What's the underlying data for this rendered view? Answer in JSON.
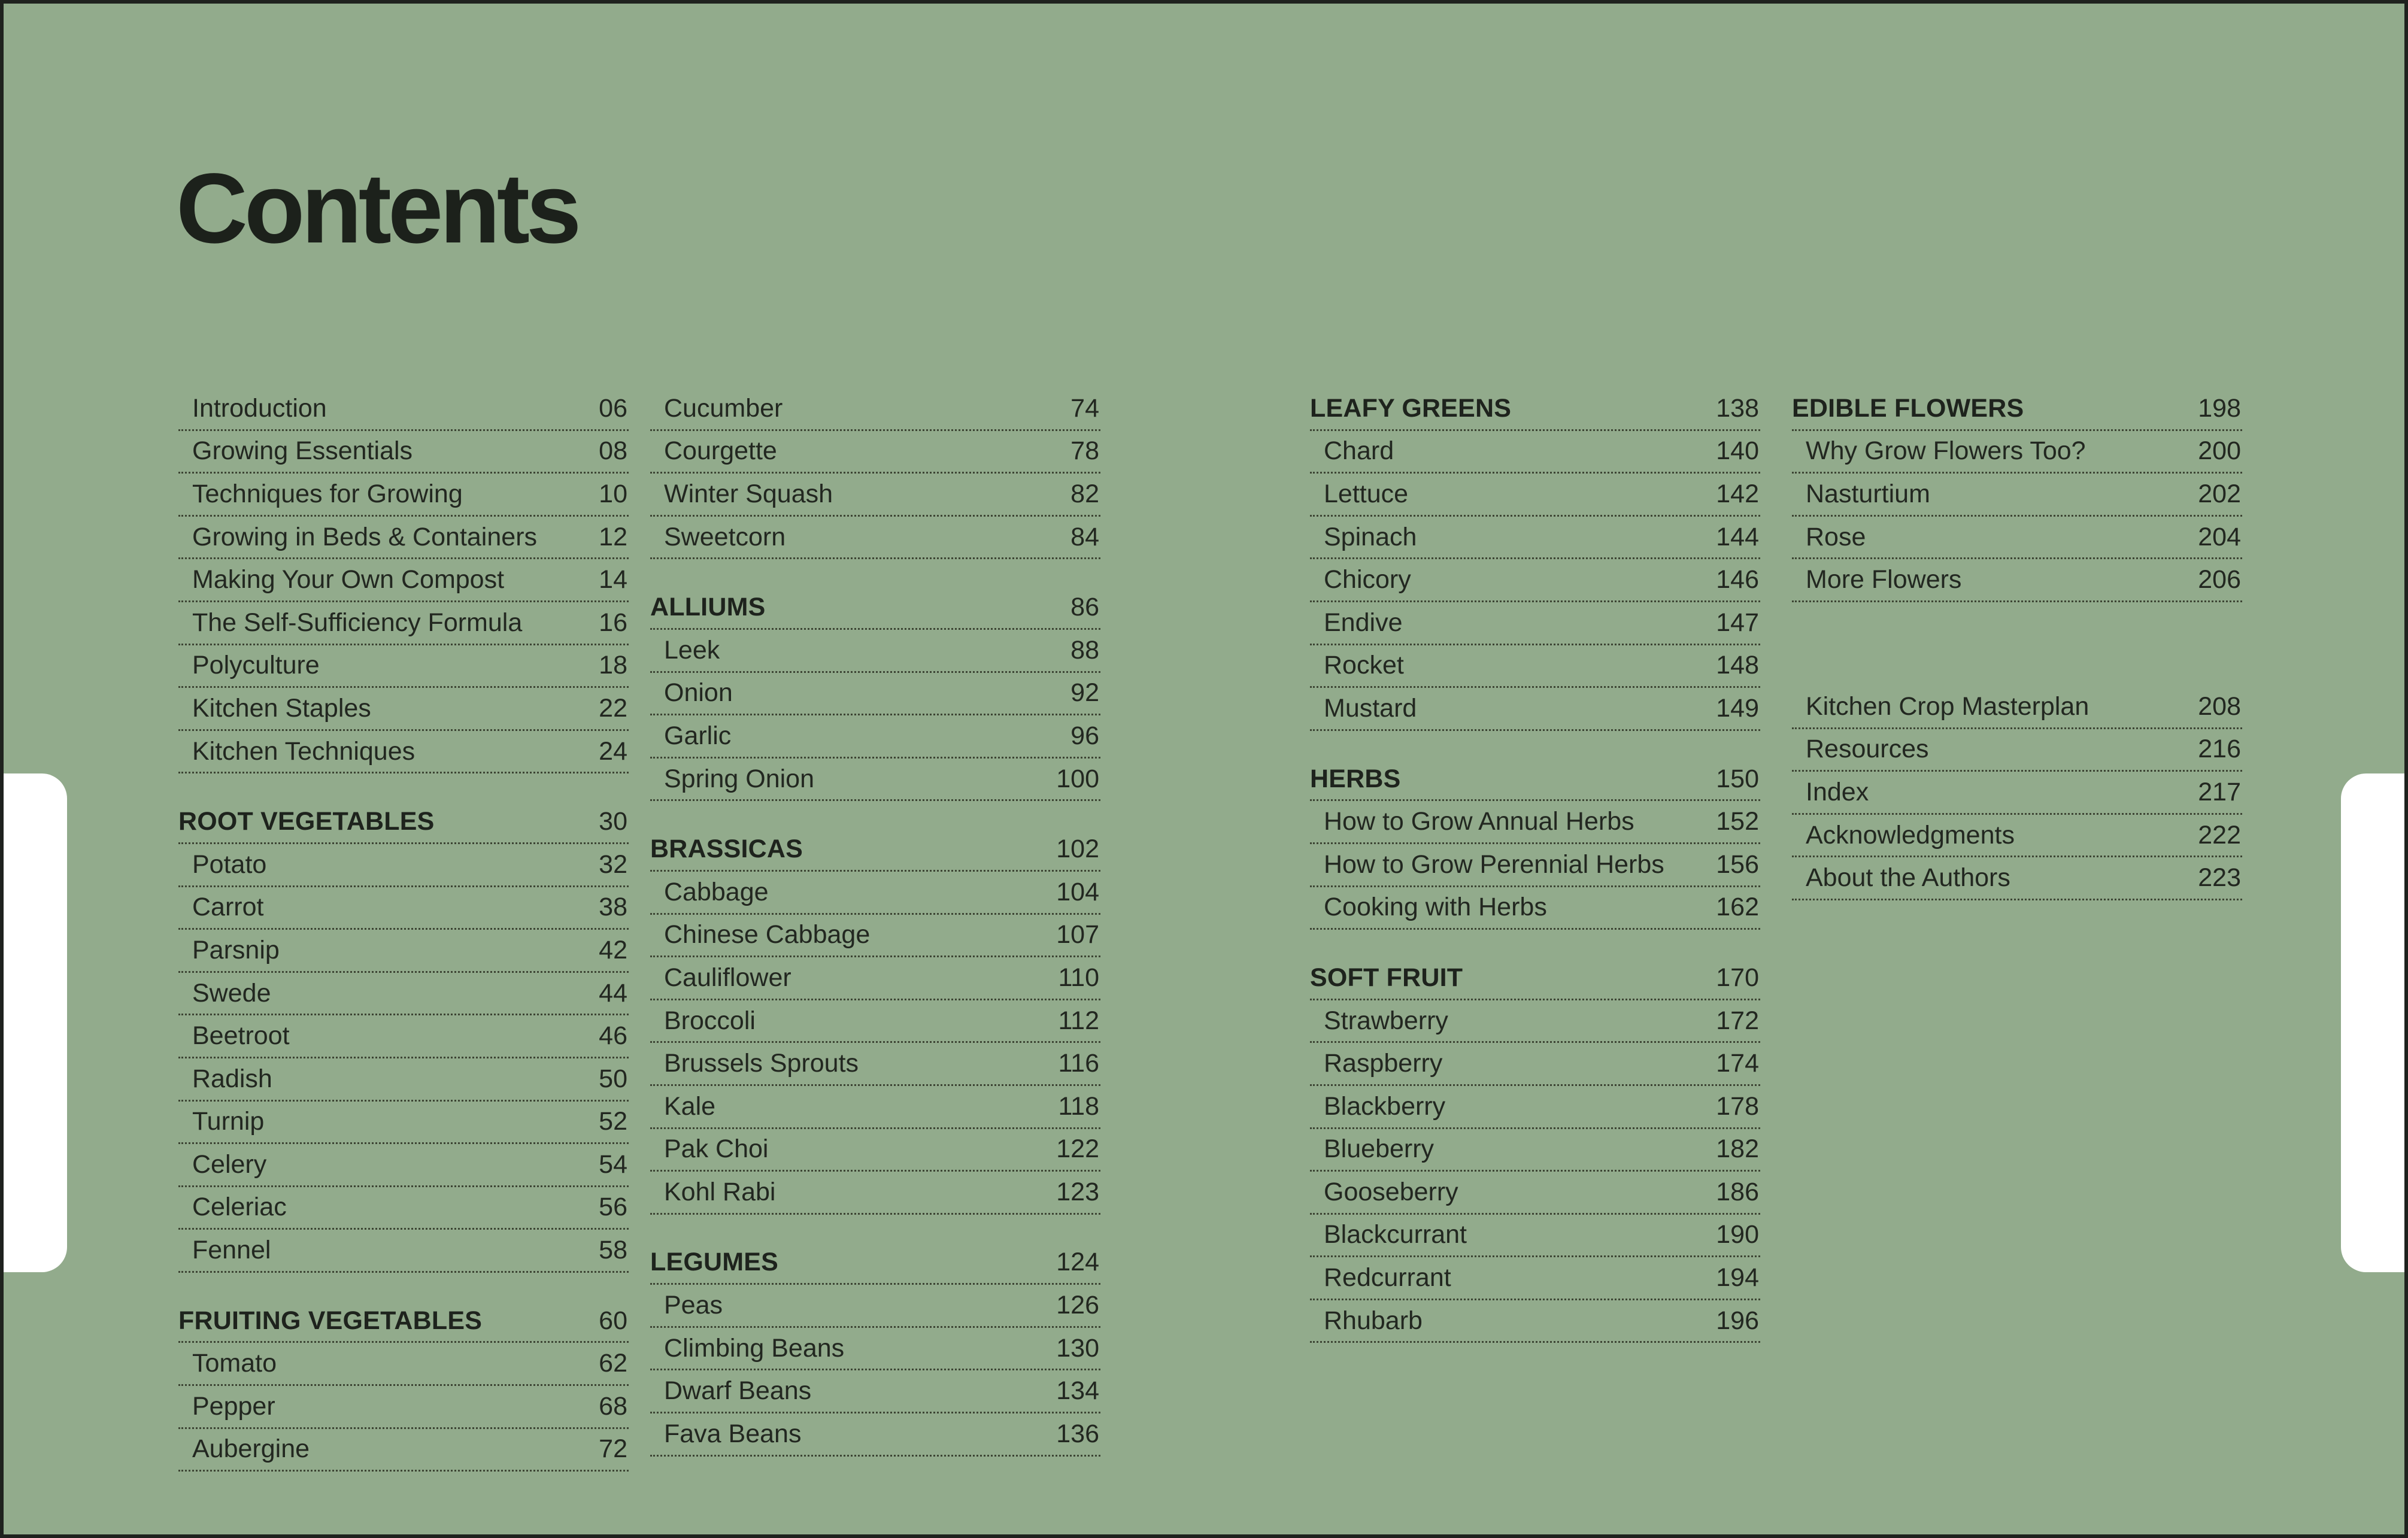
{
  "page": {
    "title": "Contents",
    "colors": {
      "background": "#92ab8c",
      "text": "#222720",
      "frame": "#1f221e",
      "tab": "#ffffff",
      "dotted_rule": "#3c4433"
    }
  },
  "toc": {
    "columns": [
      {
        "groups": [
          {
            "header": null,
            "items": [
              {
                "label": "Introduction",
                "page": "06"
              },
              {
                "label": "Growing Essentials",
                "page": "08"
              },
              {
                "label": "Techniques for Growing",
                "page": "10"
              },
              {
                "label": "Growing in Beds & Containers",
                "page": "12"
              },
              {
                "label": "Making Your Own Compost",
                "page": "14"
              },
              {
                "label": "The Self-Sufficiency Formula",
                "page": "16"
              },
              {
                "label": "Polyculture",
                "page": "18"
              },
              {
                "label": "Kitchen Staples",
                "page": "22"
              },
              {
                "label": "Kitchen Techniques",
                "page": "24"
              }
            ]
          },
          {
            "header": {
              "label": "ROOT VEGETABLES",
              "page": "30"
            },
            "items": [
              {
                "label": "Potato",
                "page": "32"
              },
              {
                "label": "Carrot",
                "page": "38"
              },
              {
                "label": "Parsnip",
                "page": "42"
              },
              {
                "label": "Swede",
                "page": "44"
              },
              {
                "label": "Beetroot",
                "page": "46"
              },
              {
                "label": "Radish",
                "page": "50"
              },
              {
                "label": "Turnip",
                "page": "52"
              },
              {
                "label": "Celery",
                "page": "54"
              },
              {
                "label": "Celeriac",
                "page": "56"
              },
              {
                "label": "Fennel",
                "page": "58"
              }
            ]
          },
          {
            "header": {
              "label": "FRUITING VEGETABLES",
              "page": "60"
            },
            "items": [
              {
                "label": "Tomato",
                "page": "62"
              },
              {
                "label": "Pepper",
                "page": "68"
              },
              {
                "label": "Aubergine",
                "page": "72"
              }
            ]
          }
        ]
      },
      {
        "groups": [
          {
            "header": null,
            "items": [
              {
                "label": "Cucumber",
                "page": "74"
              },
              {
                "label": "Courgette",
                "page": "78"
              },
              {
                "label": "Winter Squash",
                "page": "82"
              },
              {
                "label": "Sweetcorn",
                "page": "84"
              }
            ]
          },
          {
            "header": {
              "label": "ALLIUMS",
              "page": "86"
            },
            "items": [
              {
                "label": "Leek",
                "page": "88"
              },
              {
                "label": "Onion",
                "page": "92"
              },
              {
                "label": "Garlic",
                "page": "96"
              },
              {
                "label": "Spring Onion",
                "page": "100"
              }
            ]
          },
          {
            "header": {
              "label": "BRASSICAS",
              "page": "102"
            },
            "items": [
              {
                "label": "Cabbage",
                "page": "104"
              },
              {
                "label": "Chinese Cabbage",
                "page": "107"
              },
              {
                "label": "Cauliflower",
                "page": "110"
              },
              {
                "label": "Broccoli",
                "page": "112"
              },
              {
                "label": "Brussels Sprouts",
                "page": "116"
              },
              {
                "label": "Kale",
                "page": "118"
              },
              {
                "label": "Pak Choi",
                "page": "122"
              },
              {
                "label": "Kohl Rabi",
                "page": "123"
              }
            ]
          },
          {
            "header": {
              "label": "LEGUMES",
              "page": "124"
            },
            "items": [
              {
                "label": "Peas",
                "page": "126"
              },
              {
                "label": "Climbing Beans",
                "page": "130"
              },
              {
                "label": "Dwarf Beans",
                "page": "134"
              },
              {
                "label": "Fava Beans",
                "page": "136"
              }
            ]
          }
        ]
      },
      {
        "groups": [
          {
            "header": {
              "label": "LEAFY GREENS",
              "page": "138"
            },
            "items": [
              {
                "label": "Chard",
                "page": "140"
              },
              {
                "label": "Lettuce",
                "page": "142"
              },
              {
                "label": "Spinach",
                "page": "144"
              },
              {
                "label": "Chicory",
                "page": "146"
              },
              {
                "label": "Endive",
                "page": "147"
              },
              {
                "label": "Rocket",
                "page": "148"
              },
              {
                "label": "Mustard",
                "page": "149"
              }
            ]
          },
          {
            "header": {
              "label": "HERBS",
              "page": "150"
            },
            "items": [
              {
                "label": "How to Grow Annual Herbs",
                "page": "152"
              },
              {
                "label": "How to Grow Perennial Herbs",
                "page": "156"
              },
              {
                "label": "Cooking with Herbs",
                "page": "162"
              }
            ]
          },
          {
            "header": {
              "label": "SOFT FRUIT",
              "page": "170"
            },
            "items": [
              {
                "label": "Strawberry",
                "page": "172"
              },
              {
                "label": "Raspberry",
                "page": "174"
              },
              {
                "label": "Blackberry",
                "page": "178"
              },
              {
                "label": "Blueberry",
                "page": "182"
              },
              {
                "label": "Gooseberry",
                "page": "186"
              },
              {
                "label": "Blackcurrant",
                "page": "190"
              },
              {
                "label": "Redcurrant",
                "page": "194"
              },
              {
                "label": "Rhubarb",
                "page": "196"
              }
            ]
          }
        ]
      },
      {
        "groups": [
          {
            "header": {
              "label": "EDIBLE FLOWERS",
              "page": "198"
            },
            "items": [
              {
                "label": "Why Grow Flowers Too?",
                "page": "200"
              },
              {
                "label": "Nasturtium",
                "page": "202"
              },
              {
                "label": "Rose",
                "page": "204"
              },
              {
                "label": "More Flowers",
                "page": "206"
              }
            ]
          },
          {
            "header": null,
            "gap": "large",
            "items": [
              {
                "label": "Kitchen Crop Masterplan",
                "page": "208"
              },
              {
                "label": "Resources",
                "page": "216"
              },
              {
                "label": "Index",
                "page": "217"
              },
              {
                "label": "Acknowledgments",
                "page": "222"
              },
              {
                "label": "About the Authors",
                "page": "223"
              }
            ]
          }
        ]
      }
    ]
  }
}
